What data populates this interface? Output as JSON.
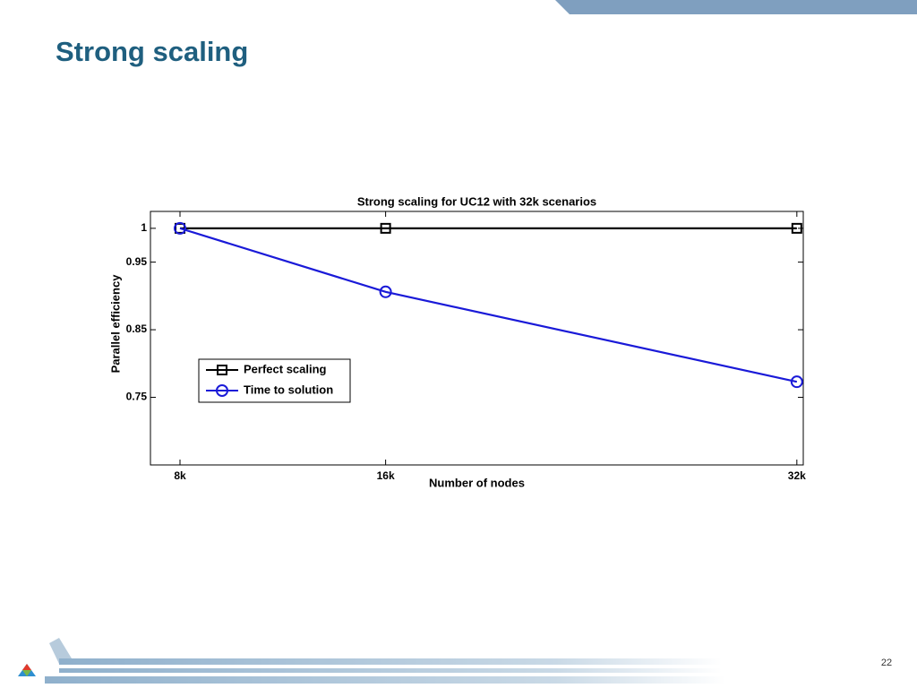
{
  "header": {
    "title": "Strong scaling"
  },
  "footer": {
    "page_number": "22"
  },
  "chart_data": {
    "type": "line",
    "title": "Strong scaling for UC12 with 32k scenarios",
    "xlabel": "Number of nodes",
    "ylabel": "Parallel efficiency",
    "x": [
      8000,
      16000,
      32000
    ],
    "series": [
      {
        "name": "Perfect scaling",
        "color": "#000000",
        "marker": "square",
        "values": [
          1,
          1,
          1
        ]
      },
      {
        "name": "Time to solution",
        "color": "#1a1ad8",
        "marker": "circle",
        "values": [
          1,
          0.906,
          0.773
        ]
      }
    ],
    "xlim": [
      6850,
      32250
    ],
    "xticks": [
      {
        "value": 8000,
        "label": "8k"
      },
      {
        "value": 16000,
        "label": "16k"
      },
      {
        "value": 32000,
        "label": "32k"
      }
    ],
    "ylim": [
      0.65,
      1.025
    ],
    "yticks": [
      0.75,
      0.85,
      0.95,
      1
    ],
    "grid": false,
    "legend": "lower left"
  }
}
